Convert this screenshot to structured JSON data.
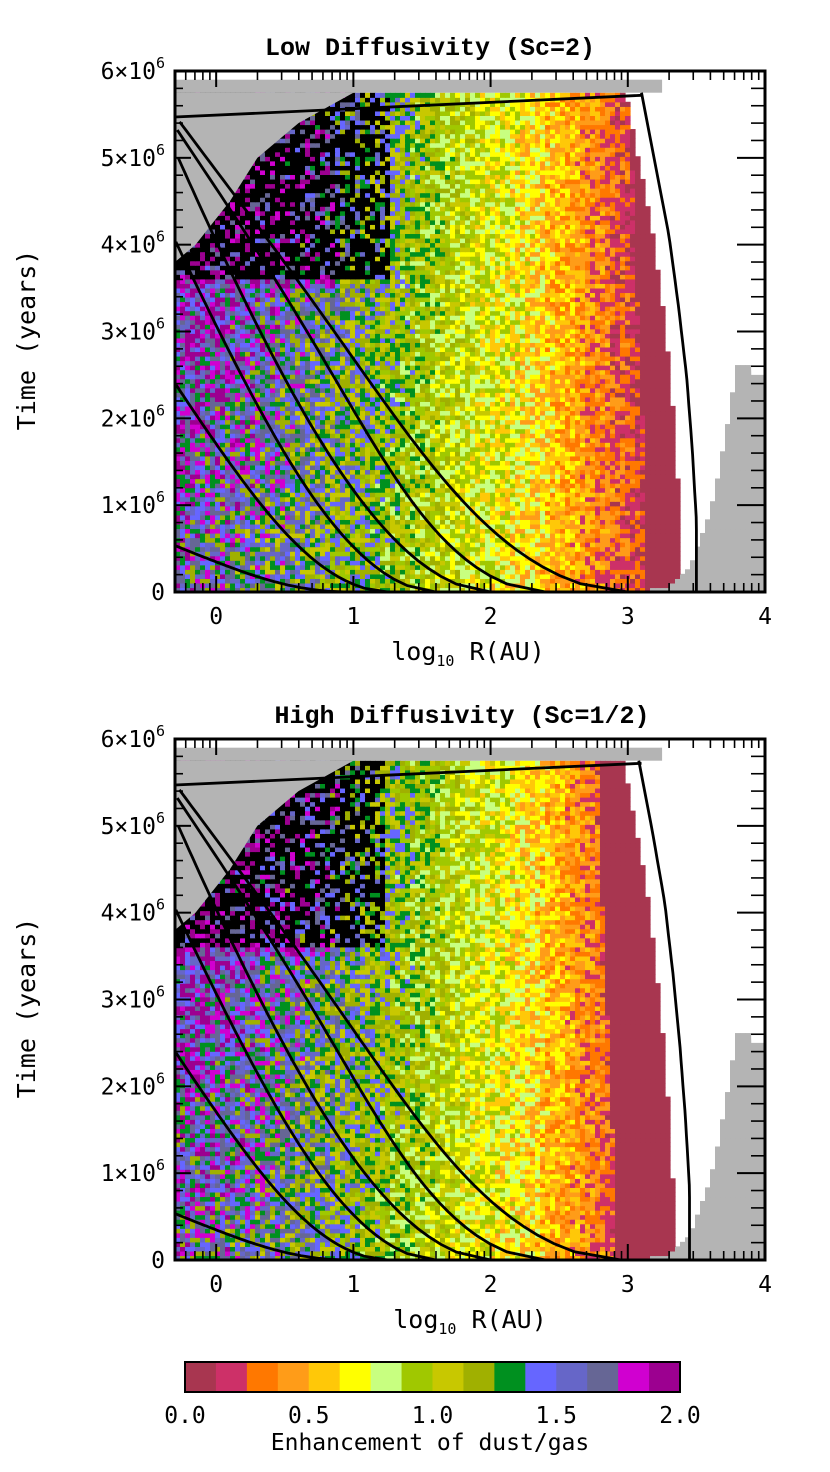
{
  "chart_data": [
    {
      "type": "heatmap",
      "title": "Low Diffusivity (Sc=2)",
      "xlabel": "log10 R(AU)",
      "ylabel": "Time (years)",
      "xlim": [
        -0.3,
        4
      ],
      "ylim": [
        0,
        6000000
      ],
      "x_ticks": [
        0,
        1,
        2,
        3,
        4
      ],
      "y_ticks": [
        "0",
        "1×10^6",
        "2×10^6",
        "3×10^6",
        "4×10^6",
        "5×10^6",
        "6×10^6"
      ],
      "color_variable": "Enhancement of dust/gas",
      "color_range": [
        0.0,
        2.0
      ],
      "outer_disk_edge_logR": [
        3.5,
        3.5,
        3.47,
        3.43,
        3.37,
        3.3,
        3.2,
        3.1
      ],
      "gas_depleted_edge_logR": [
        3.25,
        3.25,
        3.23,
        3.2,
        3.18,
        3.16,
        3.14
      ],
      "central_clearing_time_yr": 5750000,
      "trajectories": [
        {
          "start_logR": 3.0,
          "end_time_yr": 5700000
        },
        {
          "start_logR": 2.4,
          "end_time_yr": 5600000
        },
        {
          "start_logR": 2.0,
          "end_time_yr": 5450000
        },
        {
          "start_logR": 1.6,
          "end_time_yr": 4400000
        },
        {
          "start_logR": 1.25,
          "end_time_yr": 2650000
        },
        {
          "start_logR": 0.95,
          "end_time_yr": 600000
        }
      ]
    },
    {
      "type": "heatmap",
      "title": "High Diffusivity (Sc=1/2)",
      "xlabel": "log10 R(AU)",
      "ylabel": "Time (years)",
      "xlim": [
        -0.3,
        4
      ],
      "ylim": [
        0,
        6000000
      ],
      "x_ticks": [
        0,
        1,
        2,
        3,
        4
      ],
      "y_ticks": [
        "0",
        "1×10^6",
        "2×10^6",
        "3×10^6",
        "4×10^6",
        "5×10^6",
        "6×10^6"
      ],
      "color_variable": "Enhancement of dust/gas",
      "color_range": [
        0.0,
        2.0
      ],
      "outer_disk_edge_logR": [
        3.45,
        3.45,
        3.42,
        3.38,
        3.33,
        3.27,
        3.18,
        3.08
      ],
      "gas_depleted_edge_logR": [
        3.2,
        3.2,
        3.18,
        3.15,
        3.12,
        3.1,
        3.08
      ],
      "central_clearing_time_yr": 5750000,
      "trajectories": [
        {
          "start_logR": 2.95,
          "end_time_yr": 5700000
        },
        {
          "start_logR": 2.4,
          "end_time_yr": 5600000
        },
        {
          "start_logR": 2.0,
          "end_time_yr": 5450000
        },
        {
          "start_logR": 1.6,
          "end_time_yr": 4400000
        },
        {
          "start_logR": 1.25,
          "end_time_yr": 2650000
        },
        {
          "start_logR": 0.95,
          "end_time_yr": 600000
        }
      ]
    }
  ],
  "labels": {
    "panel1_title": "Low Diffusivity (Sc=2)",
    "panel2_title": "High Diffusivity (Sc=1/2)",
    "ylabel": "Time (years)",
    "xlabel_log": "log",
    "xlabel_sub": "10",
    "xlabel_rest": " R(AU)",
    "x_tick_labels": [
      "0",
      "1",
      "2",
      "3",
      "4"
    ],
    "y_tick_mantissa": [
      "1×10",
      "2×10",
      "3×10",
      "4×10",
      "5×10",
      "6×10"
    ],
    "y_tick_exp": "6",
    "y_zero": "0"
  },
  "colorbar": {
    "label": "Enhancement of dust/gas",
    "tick_labels": [
      "0.0",
      "0.5",
      "1.0",
      "1.5",
      "2.0"
    ],
    "range": [
      0.0,
      2.0
    ],
    "colors": [
      "#a83650",
      "#cd3068",
      "#ff7800",
      "#ff9c18",
      "#ffc808",
      "#ffff00",
      "#c8ff80",
      "#a0c800",
      "#c8c800",
      "#a0b000",
      "#00901f",
      "#6666ff",
      "#6666c8",
      "#666695",
      "#d000d0",
      "#9c0090"
    ]
  }
}
